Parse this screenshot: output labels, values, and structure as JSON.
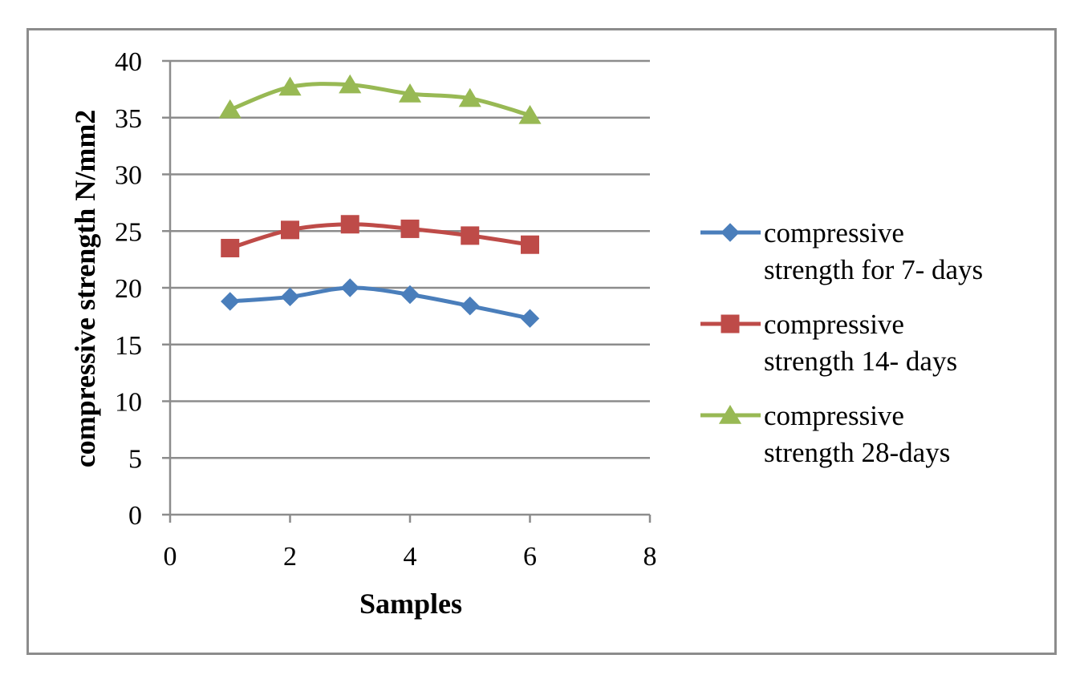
{
  "chart_data": {
    "type": "line",
    "title": "",
    "xlabel": "Samples",
    "ylabel": "compressive strength N/mm2",
    "xlim": [
      0,
      8
    ],
    "ylim": [
      0,
      40
    ],
    "xticks": [
      0,
      2,
      4,
      6,
      8
    ],
    "yticks": [
      0,
      5,
      10,
      15,
      20,
      25,
      30,
      35,
      40
    ],
    "grid": "horizontal",
    "legend_position": "right",
    "x": [
      1,
      2,
      3,
      4,
      5,
      6
    ],
    "series": [
      {
        "name": "compressive strength for 7- days",
        "legend_lines": [
          "compressive",
          "strength for 7- days"
        ],
        "marker": "diamond",
        "color": "#4a7ebb",
        "values": [
          18.8,
          19.2,
          20.0,
          19.4,
          18.4,
          17.3
        ]
      },
      {
        "name": "compressive strength 14- days",
        "legend_lines": [
          "compressive",
          "strength 14- days"
        ],
        "marker": "square",
        "color": "#be4b48",
        "values": [
          23.5,
          25.1,
          25.6,
          25.2,
          24.6,
          23.8
        ]
      },
      {
        "name": "compressive strength 28-days",
        "legend_lines": [
          "compressive",
          "strength 28-days"
        ],
        "marker": "triangle",
        "color": "#98b954",
        "values": [
          35.7,
          37.7,
          37.9,
          37.1,
          36.7,
          35.2
        ]
      }
    ]
  }
}
